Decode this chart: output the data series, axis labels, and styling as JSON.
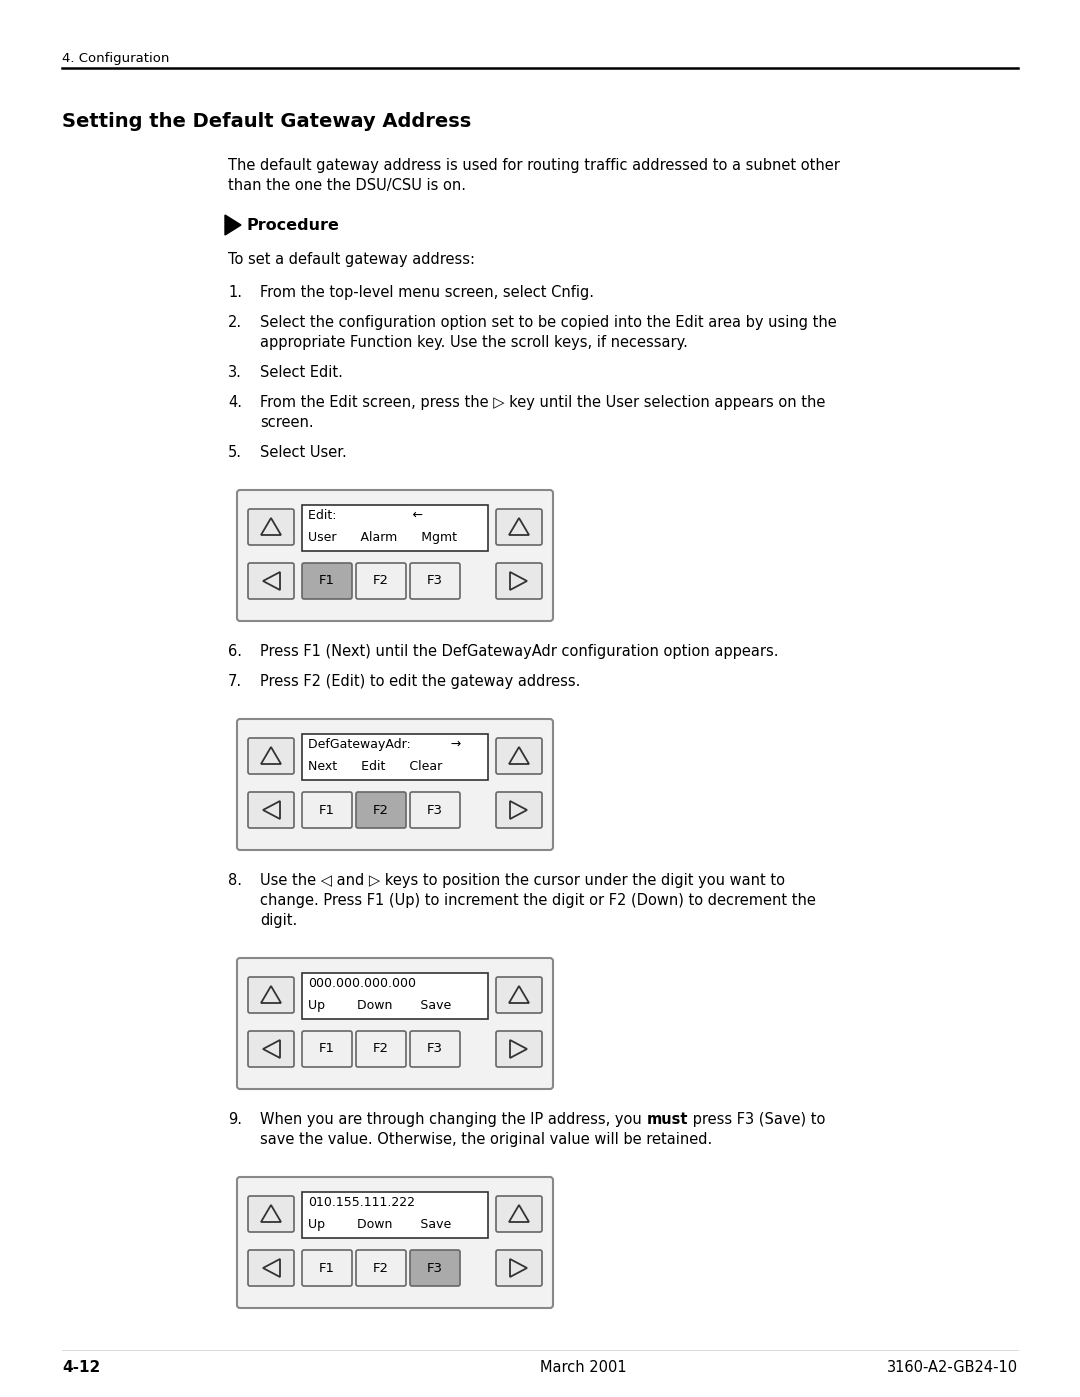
{
  "page_title": "4. Configuration",
  "section_title": "Setting the Default Gateway Address",
  "intro_text": [
    "The default gateway address is used for routing traffic addressed to a subnet other",
    "than the one the DSU/CSU is on."
  ],
  "procedure_label": "Procedure",
  "procedure_intro": "To set a default gateway address:",
  "steps": [
    [
      "From the top-level menu screen, select Cnfig."
    ],
    [
      "Select the configuration option set to be copied into the Edit area by using the",
      "appropriate Function key. Use the scroll keys, if necessary."
    ],
    [
      "Select Edit."
    ],
    [
      "From the Edit screen, press the ▷ key until the User selection appears on the",
      "screen."
    ],
    [
      "Select User."
    ],
    [
      "Press F1 (Next) until the DefGatewayAdr configuration option appears."
    ],
    [
      "Press F2 (Edit) to edit the gateway address."
    ],
    [
      "Use the ◁ and ▷ keys to position the cursor under the digit you want to",
      "change. Press F1 (Up) to increment the digit or F2 (Down) to decrement the",
      "digit."
    ],
    [
      "When you are through changing the IP address, you ",
      "must",
      " press F3 (Save) to",
      "save the value. Otherwise, the original value will be retained."
    ]
  ],
  "step9_parts": [
    {
      "text": "When you are through changing the IP address, you ",
      "bold": false
    },
    {
      "text": "must",
      "bold": true
    },
    {
      "text": " press F3 (Save) to",
      "bold": false
    }
  ],
  "step9_line2": "save the value. Otherwise, the original value will be retained.",
  "displays": [
    {
      "lcd_line1": "Edit:                   ←",
      "lcd_line2": "User      Alarm      Mgmt",
      "f1_highlight": true,
      "f2_highlight": false,
      "f3_highlight": false
    },
    {
      "lcd_line1": "DefGatewayAdr:          →",
      "lcd_line2": "Next      Edit      Clear",
      "f1_highlight": false,
      "f2_highlight": true,
      "f3_highlight": false
    },
    {
      "lcd_line1": "000.000.000.000",
      "lcd_line2": "Up        Down       Save",
      "f1_highlight": false,
      "f2_highlight": false,
      "f3_highlight": false
    },
    {
      "lcd_line1": "010.155.111.222",
      "lcd_line2": "Up        Down       Save",
      "f1_highlight": false,
      "f2_highlight": false,
      "f3_highlight": true
    }
  ],
  "footer_left": "4-12",
  "footer_center": "March 2001",
  "footer_right": "3160-A2-GB24-10",
  "bg_color": "#ffffff",
  "display_steps": [
    5,
    7,
    8,
    9
  ]
}
